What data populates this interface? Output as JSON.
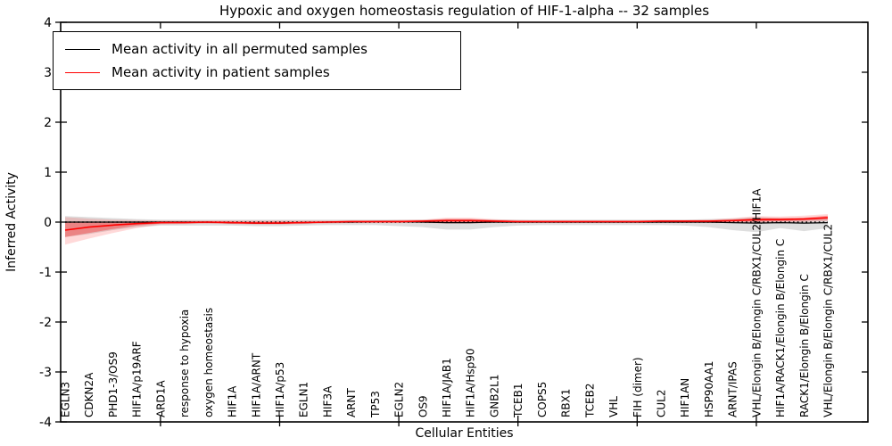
{
  "chart_data": {
    "type": "line",
    "title": "Hypoxic and oxygen homeostasis regulation of HIF-1-alpha -- 32 samples",
    "xlabel": "Cellular Entities",
    "ylabel": "Inferred Activity",
    "ylim": [
      -4,
      4
    ],
    "yticks": [
      -4,
      -3,
      -2,
      -1,
      0,
      1,
      2,
      3,
      4
    ],
    "xticks": [
      5,
      10,
      15,
      20,
      25,
      30
    ],
    "grid": false,
    "legend_position": "upper left",
    "legend": [
      {
        "label": "Mean activity in all permuted samples",
        "color": "#000000"
      },
      {
        "label": "Mean activity in patient samples",
        "color": "#ff0000"
      }
    ],
    "zero_line": {
      "value": 0,
      "style": "dotted",
      "color": "#000000"
    },
    "categories": [
      "EGLN3",
      "CDKN2A",
      "PHD1-3/OS9",
      "HIF1A/p19ARF",
      "ARD1A",
      "response to hypoxia",
      "oxygen homeostasis",
      "HIF1A",
      "HIF1A/ARNT",
      "HIF1A/p53",
      "EGLN1",
      "HIF3A",
      "ARNT",
      "TP53",
      "EGLN2",
      "OS9",
      "HIF1A/JAB1",
      "HIF1A/Hsp90",
      "GNB2L1",
      "TCEB1",
      "COPS5",
      "RBX1",
      "TCEB2",
      "VHL",
      "FIH (dimer)",
      "CUL2",
      "HIF1AN",
      "HSP90AA1",
      "ARNT/IPAS",
      "VHL/Elongin B/Elongin C/RBX1/CUL2/HIF1A",
      "HIF1A/RACK1/Elongin B/Elongin C",
      "RACK1/Elongin B/Elongin C",
      "VHL/Elongin B/Elongin C/RBX1/CUL2"
    ],
    "series": [
      {
        "name": "Mean activity in all permuted samples",
        "color": "#000000",
        "width": 1.3,
        "values": [
          0,
          0,
          0,
          0,
          0,
          0,
          0,
          -0.01,
          -0.02,
          -0.02,
          -0.01,
          0,
          0,
          0.01,
          0.01,
          0,
          -0.01,
          -0.01,
          0,
          0,
          0,
          0,
          0,
          0,
          0,
          0,
          0,
          0,
          -0.01,
          -0.02,
          -0.01,
          -0.02,
          -0.01
        ]
      },
      {
        "name": "Mean activity in patient samples",
        "color": "#ff0000",
        "width": 1.6,
        "values": [
          -0.16,
          -0.1,
          -0.06,
          -0.03,
          -0.01,
          -0.01,
          0,
          -0.01,
          -0.02,
          -0.02,
          -0.01,
          0,
          0.01,
          0.01,
          0.01,
          0.02,
          0.03,
          0.03,
          0.02,
          0.01,
          0.01,
          0.01,
          0.01,
          0.01,
          0.01,
          0.02,
          0.02,
          0.02,
          0.03,
          0.05,
          0.05,
          0.06,
          0.09
        ]
      }
    ],
    "bands": [
      {
        "name": "permuted-samples-range",
        "color": "#999999",
        "opacity": 0.32,
        "upper": [
          0.12,
          0.1,
          0.08,
          0.06,
          0.05,
          0.05,
          0.05,
          0.05,
          0.05,
          0.05,
          0.05,
          0.05,
          0.05,
          0.05,
          0.05,
          0.05,
          0.06,
          0.06,
          0.05,
          0.05,
          0.05,
          0.05,
          0.05,
          0.05,
          0.05,
          0.05,
          0.05,
          0.06,
          0.07,
          0.1,
          0.08,
          0.08,
          0.08
        ],
        "lower": [
          -0.3,
          -0.24,
          -0.16,
          -0.1,
          -0.07,
          -0.07,
          -0.07,
          -0.07,
          -0.08,
          -0.08,
          -0.07,
          -0.06,
          -0.06,
          -0.06,
          -0.08,
          -0.1,
          -0.15,
          -0.15,
          -0.1,
          -0.07,
          -0.06,
          -0.06,
          -0.06,
          -0.06,
          -0.06,
          -0.06,
          -0.07,
          -0.1,
          -0.16,
          -0.2,
          -0.12,
          -0.18,
          -0.12
        ]
      },
      {
        "name": "patient-samples-range-outer",
        "color": "#ff0000",
        "opacity": 0.15,
        "upper": [
          0.1,
          0.07,
          0.05,
          0.04,
          0.03,
          0.03,
          0.03,
          0.03,
          0.03,
          0.03,
          0.03,
          0.03,
          0.03,
          0.03,
          0.04,
          0.05,
          0.09,
          0.09,
          0.06,
          0.04,
          0.03,
          0.03,
          0.03,
          0.03,
          0.03,
          0.04,
          0.04,
          0.05,
          0.08,
          0.12,
          0.11,
          0.13,
          0.16
        ],
        "lower": [
          -0.45,
          -0.33,
          -0.22,
          -0.12,
          -0.05,
          -0.04,
          -0.03,
          -0.04,
          -0.05,
          -0.05,
          -0.04,
          -0.03,
          -0.02,
          -0.02,
          -0.02,
          -0.02,
          -0.03,
          -0.03,
          -0.02,
          -0.02,
          -0.02,
          -0.02,
          -0.02,
          -0.02,
          -0.02,
          -0.02,
          -0.02,
          -0.02,
          -0.02,
          -0.02,
          -0.01,
          0,
          0.02
        ]
      },
      {
        "name": "patient-samples-range-inner",
        "color": "#ff0000",
        "opacity": 0.3,
        "upper": [
          0,
          0,
          0,
          0,
          0.01,
          0.01,
          0.01,
          0.01,
          0.01,
          0.01,
          0.01,
          0.01,
          0.02,
          0.02,
          0.02,
          0.03,
          0.06,
          0.06,
          0.04,
          0.02,
          0.02,
          0.02,
          0.02,
          0.02,
          0.02,
          0.03,
          0.03,
          0.03,
          0.05,
          0.08,
          0.08,
          0.09,
          0.13
        ],
        "lower": [
          -0.3,
          -0.22,
          -0.14,
          -0.07,
          -0.03,
          -0.02,
          -0.02,
          -0.03,
          -0.03,
          -0.03,
          -0.02,
          -0.01,
          -0.01,
          -0.01,
          -0.01,
          0,
          0,
          0,
          0,
          0,
          0,
          0,
          0,
          0,
          0,
          0,
          0.01,
          0.01,
          0.01,
          0.01,
          0.02,
          0.03,
          0.05
        ]
      }
    ]
  }
}
